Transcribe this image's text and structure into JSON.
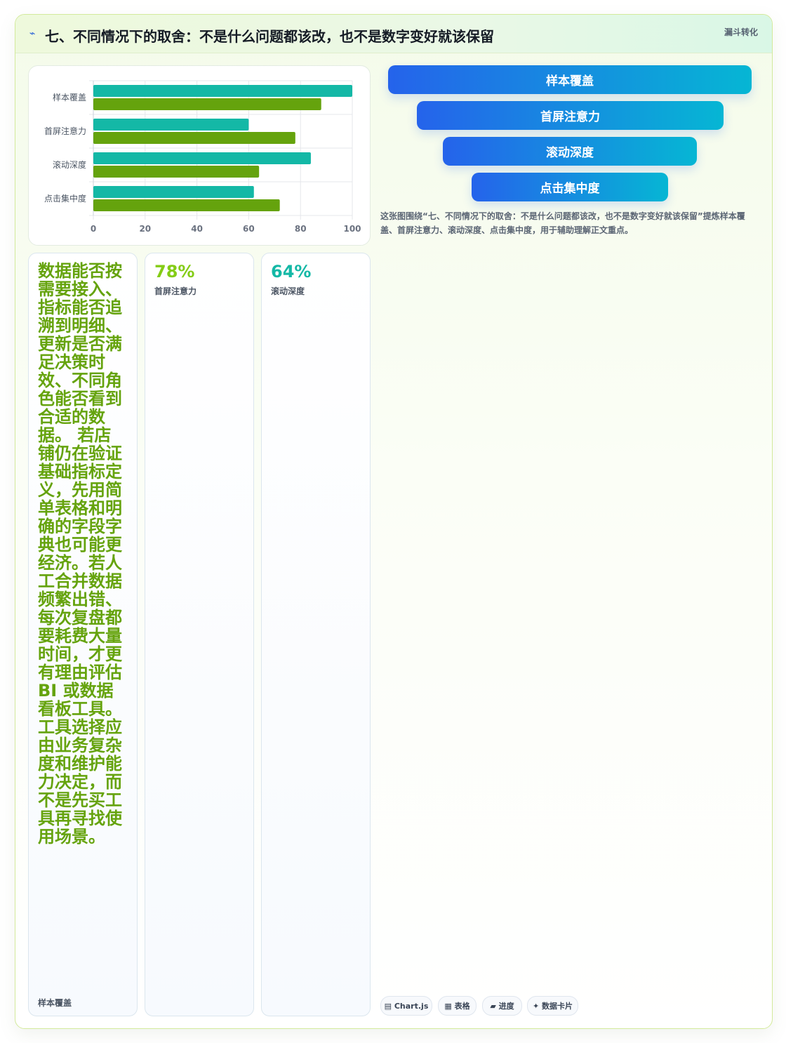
{
  "header": {
    "icon": "⌁",
    "title": "七、不同情况下的取舍：不是什么问题都该改，也不是数字变好就该保留",
    "tag": "漏斗转化"
  },
  "chart_data": {
    "type": "bar",
    "orientation": "horizontal",
    "categories": [
      "样本覆盖",
      "首屏注意力",
      "滚动深度",
      "点击集中度"
    ],
    "series": [
      {
        "values": [
          100,
          60,
          84,
          62
        ],
        "color": "#14b8a6"
      },
      {
        "values": [
          88,
          78,
          64,
          72
        ],
        "color": "#65a30d"
      }
    ],
    "xlim": [
      0,
      100
    ],
    "xticks": [
      "0",
      "20",
      "40",
      "60",
      "80",
      "100"
    ],
    "grid": true,
    "legend": "none"
  },
  "funnel": {
    "steps": [
      "样本覆盖",
      "首屏注意力",
      "滚动深度",
      "点击集中度"
    ]
  },
  "caption": "这张图围绕“七、不同情况下的取舍：不是什么问题都该改，也不是数字变好就该保留”提炼样本覆盖、首屏注意力、滚动深度、点击集中度，用于辅助理解正文重点。",
  "tiles": {
    "text_tile": {
      "text": "数据能否按需要接入、指标能否追溯到明细、更新是否满足决策时效、不同角色能否看到合适的数据。 若店铺仍在验证基础指标定义，先用简单表格和明确的字段字典也可能更经济。若人工合并数据频繁出错、每次复盘都要耗费大量时间，才更有理由评估 BI 或数据看板工具。工具选择应由业务复杂度和维护能力决定，而不是先买工具再寻找使用场景。",
      "label": "样本覆盖"
    },
    "kpi1": {
      "value": "78%",
      "label": "首屏注意力",
      "color": "#84cc16"
    },
    "kpi2": {
      "value": "64%",
      "label": "滚动深度",
      "color": "#14b8a6"
    }
  },
  "chips": [
    {
      "icon": "▤",
      "label": "Chart.js"
    },
    {
      "icon": "▦",
      "label": "表格"
    },
    {
      "icon": "▰",
      "label": "进度"
    },
    {
      "icon": "✦",
      "label": "数据卡片"
    }
  ]
}
